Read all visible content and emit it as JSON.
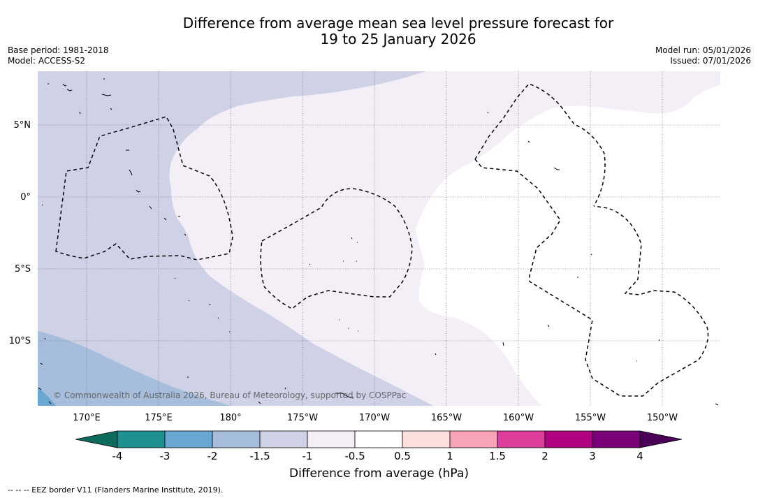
{
  "title": {
    "line1": "Difference from average mean sea level pressure forecast for",
    "line2": "19 to 25 January 2026"
  },
  "meta": {
    "base_period": "Base period: 1981-2018",
    "model": "Model: ACCESS-S2",
    "model_run": "Model run: 05/01/2026",
    "issued": "Issued: 07/01/2026"
  },
  "map": {
    "lat_labels": [
      "5°N",
      "0°",
      "5°S",
      "10°S"
    ],
    "lon_labels": [
      "170°E",
      "175°E",
      "180°",
      "175°W",
      "170°W",
      "165°W",
      "160°W",
      "155°W",
      "150°W"
    ],
    "copyright": "© Commonwealth of Australia 2026, Bureau of Meteorology, supported by COSPPac"
  },
  "colorbar": {
    "ticks": [
      "-4",
      "-3",
      "-2",
      "-1.5",
      "-1",
      "-0.5",
      "0.5",
      "1",
      "1.5",
      "2",
      "3",
      "4"
    ],
    "colors": {
      "below_min": "#0d6b5e",
      "c_-4_-3": "#1f9091",
      "c_-3_-2": "#68a8d2",
      "c_-2_-1.5": "#a6bedc",
      "c_-1.5_-1": "#cfd1e6",
      "c_-1_-0.5": "#f4eef7",
      "c_-0.5_0.5": "#ffffff",
      "c_0.5_1": "#fde0dd",
      "c_1_1.5": "#f9a3b8",
      "c_1.5_2": "#dd3e9c",
      "c_2_3": "#ae0281",
      "c_3_4": "#7a0279",
      "above_max": "#4b0058"
    },
    "label": "Difference from average (hPa)"
  },
  "footer": "--  --  -- EEZ border V11 (Flanders Marine Institute, 2019)."
}
